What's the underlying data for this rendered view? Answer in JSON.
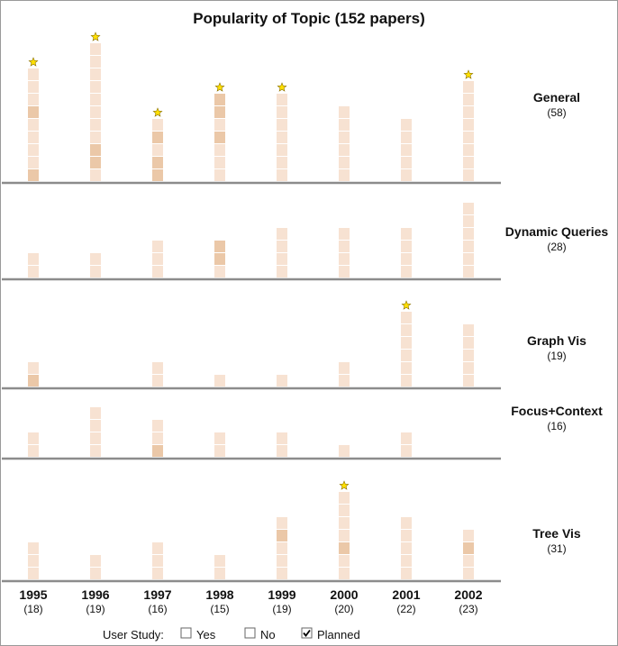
{
  "chart_data": {
    "type": "bar",
    "title": "Popularity of Topic (152 papers)",
    "categories": [
      "1995",
      "1996",
      "1997",
      "1998",
      "1999",
      "2000",
      "2001",
      "2002"
    ],
    "year_counts": [
      "(18)",
      "(19)",
      "(16)",
      "(15)",
      "(19)",
      "(20)",
      "(22)",
      "(23)"
    ],
    "series": [
      {
        "name": "General",
        "count": "(58)",
        "values": [
          9,
          11,
          5,
          7,
          7,
          6,
          5,
          8
        ],
        "starred": [
          true,
          true,
          true,
          true,
          true,
          false,
          false,
          true
        ],
        "highlighted": [
          [
            0,
            5
          ],
          [
            1,
            2
          ],
          [
            0,
            1,
            3
          ],
          [
            3,
            5,
            6
          ],
          [],
          [],
          [],
          []
        ]
      },
      {
        "name": "Dynamic Queries",
        "count": "(28)",
        "values": [
          2,
          2,
          3,
          3,
          4,
          4,
          4,
          6
        ],
        "starred": [
          false,
          false,
          false,
          false,
          false,
          false,
          false,
          false
        ],
        "highlighted": [
          [],
          [],
          [],
          [
            1,
            2
          ],
          [],
          [],
          [],
          []
        ]
      },
      {
        "name": "Graph Vis",
        "count": "(19)",
        "values": [
          2,
          0,
          2,
          1,
          1,
          2,
          6,
          5
        ],
        "starred": [
          false,
          false,
          false,
          false,
          false,
          false,
          true,
          false
        ],
        "highlighted": [
          [
            0
          ],
          [],
          [],
          [],
          [],
          [],
          [],
          []
        ]
      },
      {
        "name": "Focus+Context",
        "count": "(16)",
        "values": [
          2,
          4,
          3,
          2,
          2,
          1,
          2,
          0
        ],
        "starred": [
          false,
          false,
          false,
          false,
          false,
          false,
          false,
          false
        ],
        "highlighted": [
          [],
          [],
          [
            0
          ],
          [],
          [],
          [],
          [],
          []
        ]
      },
      {
        "name": "Tree Vis",
        "count": "(31)",
        "values": [
          3,
          2,
          3,
          2,
          5,
          7,
          5,
          4
        ],
        "starred": [
          false,
          false,
          false,
          false,
          false,
          true,
          false,
          false
        ],
        "highlighted": [
          [],
          [],
          [],
          [],
          [
            3
          ],
          [
            2
          ],
          [],
          [
            2
          ]
        ]
      }
    ],
    "colors": {
      "block": "#f7e2d2",
      "block_highlight": "#ebc8a8",
      "star": "#ffe000",
      "star_stroke": "#8a7000",
      "separator": "#8c8c8c"
    }
  },
  "legend": {
    "label": "User Study:",
    "items": [
      {
        "label": "Yes",
        "checked": false
      },
      {
        "label": "No",
        "checked": false
      },
      {
        "label": "Planned",
        "checked": true
      }
    ]
  }
}
